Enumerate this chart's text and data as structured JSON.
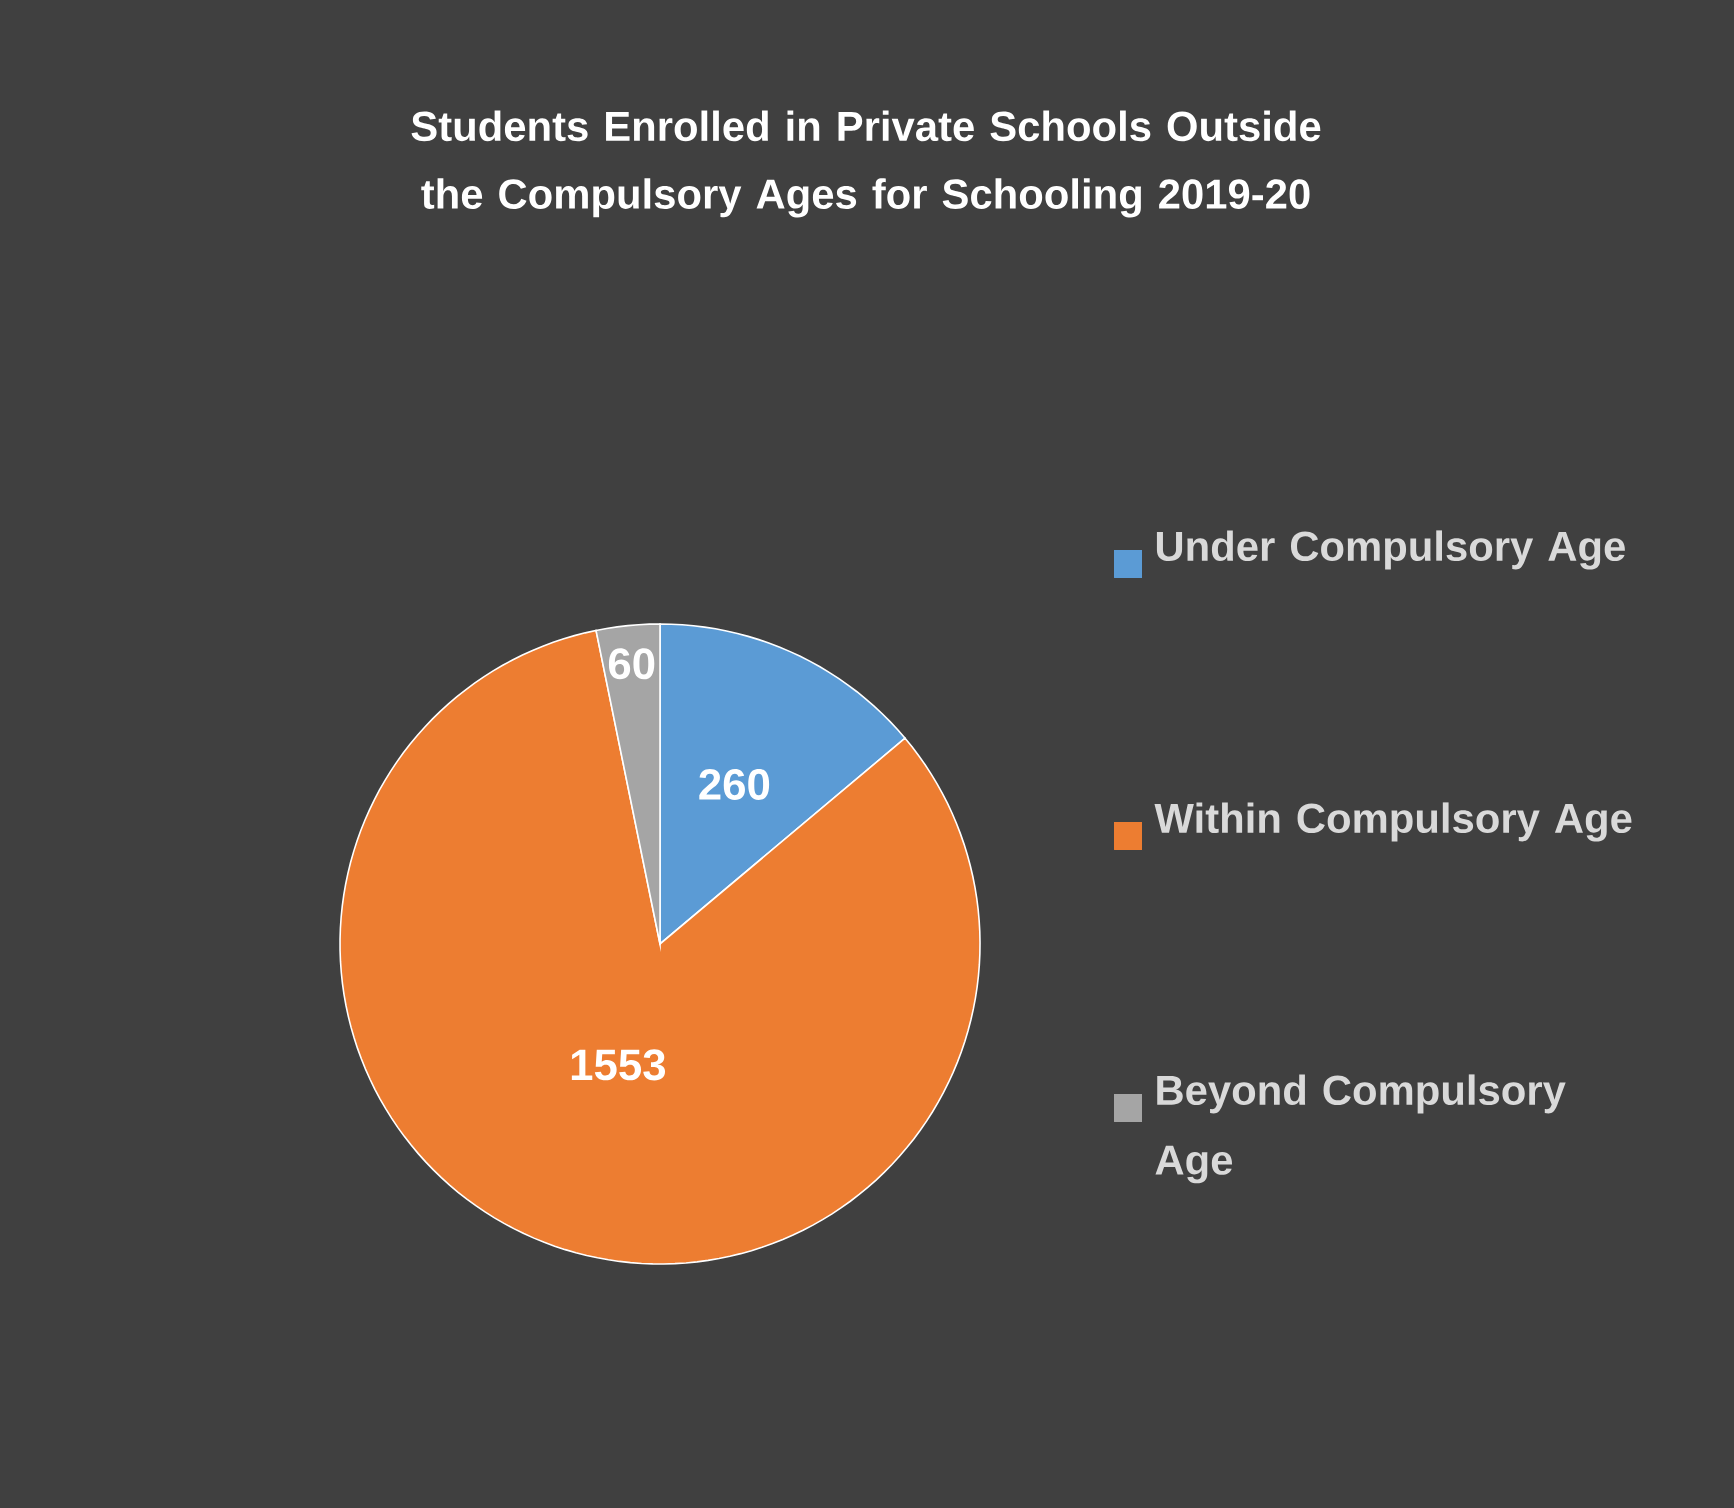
{
  "chart_data": {
    "type": "pie",
    "title": "Students Enrolled in Private Schools Outside the Compulsory Ages for Schooling 2019-20",
    "categories": [
      "Under Compulsory Age",
      "Within Compulsory Age",
      "Beyond Compulsory Age"
    ],
    "values": [
      260,
      1553,
      60
    ],
    "colors": [
      "#5b9bd5",
      "#ed7d31",
      "#a5a5a5"
    ],
    "data_labels": true,
    "legend": "right"
  }
}
